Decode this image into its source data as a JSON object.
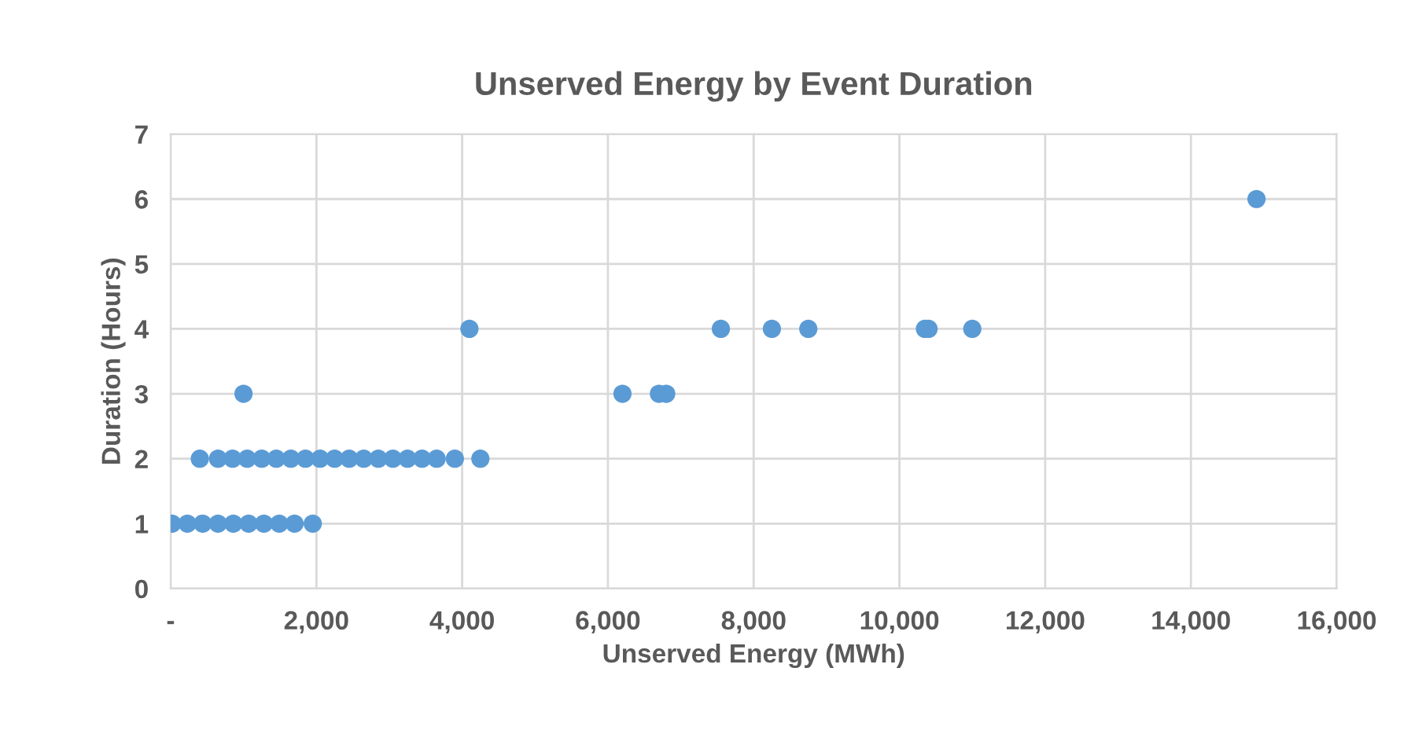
{
  "chart_data": {
    "type": "scatter",
    "title": "Unserved Energy by Event Duration",
    "xlabel": "Unserved Energy (MWh)",
    "ylabel": "Duration (Hours)",
    "xlim": [
      0,
      16000
    ],
    "ylim": [
      0,
      7
    ],
    "xticks": [
      {
        "value": 0,
        "label": "-"
      },
      {
        "value": 2000,
        "label": "2,000"
      },
      {
        "value": 4000,
        "label": "4,000"
      },
      {
        "value": 6000,
        "label": "6,000"
      },
      {
        "value": 8000,
        "label": "8,000"
      },
      {
        "value": 10000,
        "label": "10,000"
      },
      {
        "value": 12000,
        "label": "12,000"
      },
      {
        "value": 14000,
        "label": "14,000"
      },
      {
        "value": 16000,
        "label": "16,000"
      }
    ],
    "yticks": [
      0,
      1,
      2,
      3,
      4,
      5,
      6,
      7
    ],
    "grid": true,
    "marker": "circle",
    "series": [
      {
        "color": "#5b9bd5",
        "x": [
          20,
          230,
          440,
          650,
          860,
          1070,
          1280,
          1490,
          1700,
          1950,
          400,
          650,
          850,
          1050,
          1250,
          1450,
          1650,
          1850,
          2050,
          2250,
          2450,
          2650,
          2850,
          3050,
          3250,
          3450,
          3650,
          3900,
          4250,
          1000,
          6200,
          6700,
          6800,
          4100,
          7550,
          8250,
          8750,
          10350,
          10400,
          11000,
          14900
        ],
        "values": [
          1,
          1,
          1,
          1,
          1,
          1,
          1,
          1,
          1,
          1,
          2,
          2,
          2,
          2,
          2,
          2,
          2,
          2,
          2,
          2,
          2,
          2,
          2,
          2,
          2,
          2,
          2,
          2,
          2,
          3,
          3,
          3,
          3,
          4,
          4,
          4,
          4,
          4,
          4,
          4,
          6
        ]
      }
    ]
  }
}
